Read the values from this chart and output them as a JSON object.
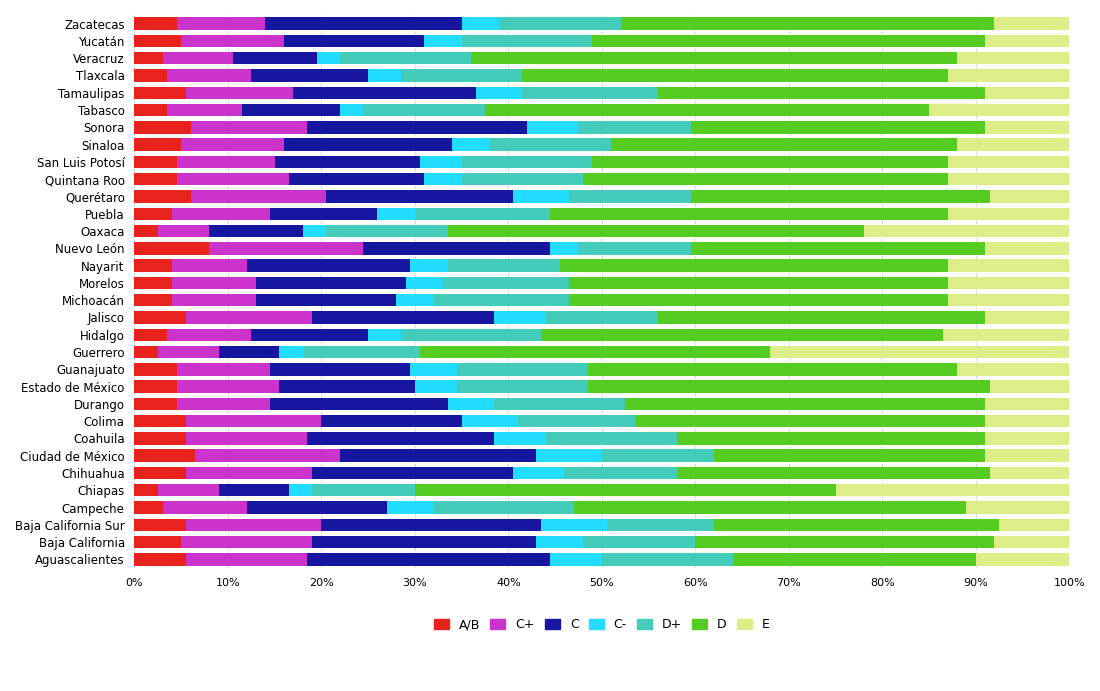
{
  "states_top_to_bottom": [
    "Zacatecas",
    "Yucatán",
    "Veracruz",
    "Tlaxcala",
    "Tamaulipas",
    "Tabasco",
    "Sonora",
    "Sinaloa",
    "San Luis Potosí",
    "Quintana Roo",
    "Querétaro",
    "Puebla",
    "Oaxaca",
    "Nuevo León",
    "Nayarit",
    "Morelos",
    "Michoacán",
    "Jalisco",
    "Hidalgo",
    "Guerrero",
    "Guanajuato",
    "Estado de México",
    "Durango",
    "Colima",
    "Coahuila",
    "Ciudad de México",
    "Chihuahua",
    "Chiapas",
    "Campeche",
    "Baja California Sur",
    "Baja California",
    "Aguascalientes"
  ],
  "segments": {
    "AB": [
      4.5,
      5.0,
      3.0,
      3.5,
      5.5,
      3.5,
      6.0,
      5.0,
      4.5,
      4.5,
      6.0,
      4.0,
      2.5,
      8.0,
      4.0,
      4.0,
      4.0,
      5.5,
      3.5,
      2.5,
      4.5,
      4.5,
      4.5,
      5.5,
      5.5,
      6.5,
      5.5,
      2.5,
      3.0,
      5.5,
      5.0,
      5.5
    ],
    "C+": [
      9.5,
      11.0,
      7.5,
      9.0,
      11.5,
      8.0,
      12.5,
      11.0,
      10.5,
      12.0,
      14.5,
      10.5,
      5.5,
      16.5,
      8.0,
      9.0,
      9.0,
      13.5,
      9.0,
      6.5,
      10.0,
      11.0,
      10.0,
      14.5,
      13.0,
      15.5,
      13.5,
      6.5,
      9.0,
      14.5,
      14.0,
      13.0
    ],
    "C": [
      21.0,
      15.0,
      9.0,
      12.5,
      19.5,
      10.5,
      23.5,
      18.0,
      15.5,
      14.5,
      20.0,
      11.5,
      10.0,
      20.0,
      17.5,
      16.0,
      15.0,
      19.5,
      12.5,
      6.5,
      15.0,
      14.5,
      19.0,
      15.0,
      20.0,
      21.0,
      21.5,
      7.5,
      15.0,
      23.5,
      24.0,
      26.0
    ],
    "C-": [
      4.0,
      4.0,
      2.5,
      3.5,
      5.0,
      2.5,
      5.5,
      4.0,
      4.5,
      4.0,
      6.0,
      4.0,
      2.5,
      3.0,
      4.0,
      4.0,
      4.0,
      5.5,
      3.5,
      2.5,
      5.0,
      4.5,
      5.0,
      6.0,
      5.5,
      7.0,
      5.5,
      2.5,
      5.0,
      7.0,
      5.0,
      5.5
    ],
    "D+": [
      13.0,
      14.0,
      14.0,
      13.0,
      14.5,
      13.0,
      12.0,
      13.0,
      14.0,
      13.0,
      13.0,
      14.5,
      13.0,
      12.0,
      12.0,
      13.5,
      14.5,
      12.0,
      15.0,
      12.5,
      14.0,
      14.0,
      14.0,
      12.5,
      14.0,
      12.0,
      12.0,
      11.0,
      15.0,
      11.5,
      12.0,
      14.0
    ],
    "D": [
      40.0,
      42.0,
      52.0,
      45.5,
      35.0,
      47.5,
      31.5,
      37.0,
      38.0,
      39.0,
      32.0,
      42.5,
      44.5,
      31.5,
      41.5,
      40.5,
      40.5,
      35.0,
      43.0,
      37.5,
      39.5,
      43.0,
      38.5,
      37.5,
      33.0,
      29.0,
      33.5,
      45.0,
      42.0,
      30.5,
      32.0,
      26.0
    ],
    "E": [
      8.0,
      9.0,
      12.0,
      13.0,
      9.0,
      15.0,
      9.0,
      12.0,
      13.0,
      13.0,
      8.5,
      13.0,
      22.0,
      9.0,
      13.0,
      13.0,
      13.0,
      9.0,
      13.5,
      32.5,
      12.0,
      8.5,
      9.0,
      9.0,
      9.0,
      9.0,
      8.5,
      25.5,
      11.0,
      7.5,
      8.0,
      10.0
    ]
  },
  "colors": {
    "AB": "#e8231e",
    "C+": "#cc33cc",
    "C": "#1616a0",
    "C-": "#22ddff",
    "D+": "#44ccbb",
    "D": "#55cc22",
    "E": "#ddee88"
  },
  "segment_order": [
    "AB",
    "C+",
    "C",
    "C-",
    "D+",
    "D",
    "E"
  ],
  "legend_labels": {
    "AB": "A/B",
    "C+": "C+",
    "C": "C",
    "C-": "C-",
    "D+": "D+",
    "D": "D",
    "E": "E"
  }
}
